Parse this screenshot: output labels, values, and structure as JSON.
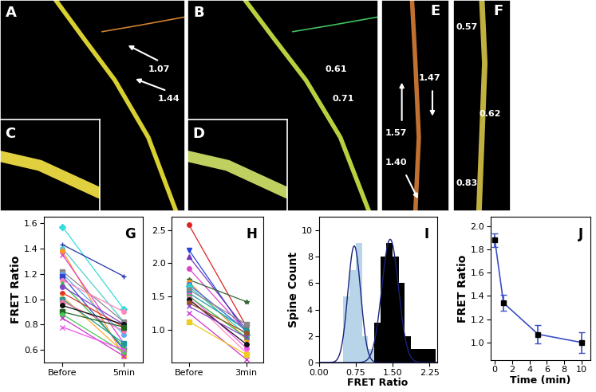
{
  "image_panels": [
    {
      "label": "A",
      "values": [
        "1.07",
        "1.44"
      ]
    },
    {
      "label": "B",
      "values": [
        "0.61",
        "0.71"
      ]
    },
    {
      "label": "C",
      "values": []
    },
    {
      "label": "D",
      "values": []
    },
    {
      "label": "E",
      "values": [
        "1.57",
        "1.47",
        "1.40"
      ]
    },
    {
      "label": "F",
      "values": [
        "0.57",
        "0.62",
        "0.83"
      ]
    }
  ],
  "chart_data": [
    {
      "type": "line",
      "title": "G",
      "y_label": "FRET Ratio",
      "categories": [
        "Before",
        "5min"
      ],
      "ylim": [
        0.5,
        1.65
      ],
      "yticks": [
        0.6,
        0.8,
        1.0,
        1.2,
        1.4,
        1.6
      ],
      "series": [
        {
          "values": [
            1.57,
            0.92
          ],
          "color": "#33dddd",
          "marker": "diamond"
        },
        {
          "values": [
            1.43,
            1.18
          ],
          "color": "#2233aa",
          "marker": "plus"
        },
        {
          "values": [
            1.4,
            0.82
          ],
          "color": "#55cccc",
          "marker": "circle"
        },
        {
          "values": [
            1.38,
            0.55
          ],
          "color": "#ff9922",
          "marker": "circle"
        },
        {
          "values": [
            1.35,
            0.65
          ],
          "color": "#dd44cc",
          "marker": "x"
        },
        {
          "values": [
            1.22,
            0.82
          ],
          "color": "#888888",
          "marker": "square"
        },
        {
          "values": [
            1.2,
            0.72
          ],
          "color": "#66aaee",
          "marker": "circle"
        },
        {
          "values": [
            1.18,
            0.6
          ],
          "color": "#3344cc",
          "marker": "square"
        },
        {
          "values": [
            1.15,
            0.9
          ],
          "color": "#ff88bb",
          "marker": "circle"
        },
        {
          "values": [
            1.12,
            0.62
          ],
          "color": "#33bb44",
          "marker": "triangle"
        },
        {
          "values": [
            1.1,
            0.8
          ],
          "color": "#8844cc",
          "marker": "circle"
        },
        {
          "values": [
            1.05,
            0.78
          ],
          "color": "#dd3333",
          "marker": "circle"
        },
        {
          "values": [
            1.02,
            0.58
          ],
          "color": "#ffaa33",
          "marker": "x"
        },
        {
          "values": [
            1.0,
            0.65
          ],
          "color": "#229999",
          "marker": "square"
        },
        {
          "values": [
            0.98,
            0.75
          ],
          "color": "#ee77aa",
          "marker": "circle"
        },
        {
          "values": [
            0.95,
            0.8
          ],
          "color": "#111111",
          "marker": "circle"
        },
        {
          "values": [
            0.9,
            0.78
          ],
          "color": "#226622",
          "marker": "square"
        },
        {
          "values": [
            0.88,
            0.58
          ],
          "color": "#44cc55",
          "marker": "circle"
        },
        {
          "values": [
            0.85,
            0.55
          ],
          "color": "#cc33cc",
          "marker": "x"
        },
        {
          "values": [
            0.78,
            0.6
          ],
          "color": "#ee55ee",
          "marker": "x"
        }
      ]
    },
    {
      "type": "line",
      "title": "H",
      "categories": [
        "Before",
        "3min"
      ],
      "ylim": [
        0.5,
        2.7
      ],
      "yticks": [
        1.0,
        1.5,
        2.0,
        2.5
      ],
      "series": [
        {
          "values": [
            2.58,
            1.05
          ],
          "color": "#dd2222",
          "marker": "circle"
        },
        {
          "values": [
            2.2,
            0.95
          ],
          "color": "#2244dd",
          "marker": "triangle_down"
        },
        {
          "values": [
            2.1,
            1.0
          ],
          "color": "#7733bb",
          "marker": "triangle"
        },
        {
          "values": [
            1.92,
            0.97
          ],
          "color": "#dd44cc",
          "marker": "circle"
        },
        {
          "values": [
            1.75,
            1.42
          ],
          "color": "#336633",
          "marker": "star"
        },
        {
          "values": [
            1.72,
            0.85
          ],
          "color": "#ff9922",
          "marker": "circle"
        },
        {
          "values": [
            1.68,
            0.98
          ],
          "color": "#3366ee",
          "marker": "circle"
        },
        {
          "values": [
            1.65,
            0.92
          ],
          "color": "#33cccc",
          "marker": "diamond"
        },
        {
          "values": [
            1.6,
            1.08
          ],
          "color": "#888888",
          "marker": "square"
        },
        {
          "values": [
            1.55,
            1.0
          ],
          "color": "#229999",
          "marker": "circle"
        },
        {
          "values": [
            1.52,
            0.72
          ],
          "color": "#ee55ee",
          "marker": "circle"
        },
        {
          "values": [
            1.5,
            0.88
          ],
          "color": "#33bb44",
          "marker": "circle"
        },
        {
          "values": [
            1.48,
            0.65
          ],
          "color": "#ff88bb",
          "marker": "circle"
        },
        {
          "values": [
            1.45,
            0.78
          ],
          "color": "#111111",
          "marker": "circle"
        },
        {
          "values": [
            1.4,
            0.95
          ],
          "color": "#995522",
          "marker": "circle"
        },
        {
          "values": [
            1.35,
            0.88
          ],
          "color": "#8844cc",
          "marker": "x"
        },
        {
          "values": [
            1.25,
            0.55
          ],
          "color": "#cc33cc",
          "marker": "x"
        },
        {
          "values": [
            1.12,
            0.62
          ],
          "color": "#eecc22",
          "marker": "square"
        }
      ]
    },
    {
      "type": "histogram",
      "title": "I",
      "x_label": "FRET Ratio",
      "y_label": "Spine Count",
      "bins": [
        0.375,
        0.5,
        0.625,
        0.75,
        0.875,
        1.0,
        1.125,
        1.25,
        1.375,
        1.5,
        1.625,
        1.75,
        1.875,
        2.0,
        2.125,
        2.25,
        2.375
      ],
      "series": [
        {
          "color": "#b8d4e8",
          "values": [
            0,
            5,
            7,
            9,
            2,
            1,
            0,
            0,
            0,
            0,
            0,
            0,
            0,
            0,
            0,
            0
          ]
        },
        {
          "color": "#000000",
          "values": [
            0,
            0,
            0,
            0,
            0,
            0,
            3,
            8,
            9,
            8,
            6,
            2,
            1,
            1,
            1,
            1
          ]
        }
      ],
      "fits": [
        {
          "mean": 0.72,
          "sd": 0.13,
          "peak": 8.8,
          "color": "#1a237e"
        },
        {
          "mean": 1.45,
          "sd": 0.17,
          "peak": 9.3,
          "color": "#1a237e"
        }
      ],
      "xlim": [
        0,
        2.4
      ],
      "xticks": [
        {
          "value": 0,
          "label": "0.00"
        },
        {
          "value": 0.75,
          "label": "0.75"
        },
        {
          "value": 1.5,
          "label": "1.50"
        },
        {
          "value": 2.25,
          "label": "2.25"
        }
      ],
      "ylim": [
        0,
        11
      ],
      "yticks": [
        0,
        2,
        4,
        6,
        8,
        10
      ]
    },
    {
      "type": "line",
      "title": "J",
      "x_label": "Time (min)",
      "y_label": "FRET Ratio",
      "x": [
        0,
        1,
        5,
        10
      ],
      "series": [
        {
          "values": [
            1.88,
            1.34,
            1.07,
            1.0
          ],
          "errors": [
            0.06,
            0.07,
            0.08,
            0.09
          ],
          "color": "#3a4fc4",
          "marker": "square"
        }
      ],
      "xlim": [
        -0.5,
        11
      ],
      "xticks": [
        0,
        2,
        4,
        6,
        8,
        10
      ],
      "ylim": [
        0.85,
        2.08
      ],
      "yticks": [
        1.0,
        1.2,
        1.4,
        1.6,
        1.8,
        2.0
      ]
    }
  ]
}
